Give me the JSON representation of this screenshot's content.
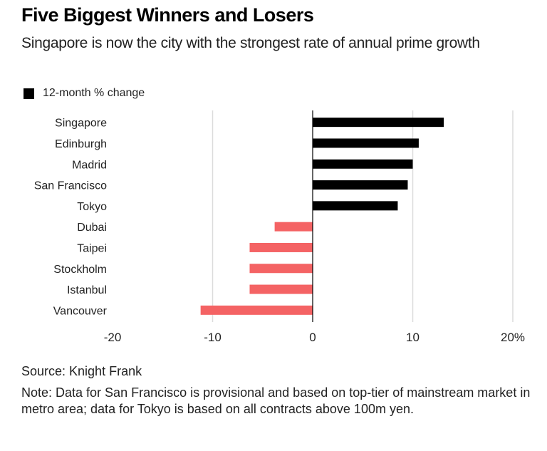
{
  "chart_data": {
    "type": "bar",
    "orientation": "horizontal",
    "title": "Five Biggest Winners and Losers",
    "subtitle": "Singapore is now the city with the strongest rate of annual prime growth",
    "legend": {
      "label": "12-month % change",
      "placement": "top-left",
      "color": "#000000"
    },
    "categories": [
      "Singapore",
      "Edinburgh",
      "Madrid",
      "San Francisco",
      "Tokyo",
      "Dubai",
      "Taipei",
      "Stockholm",
      "Istanbul",
      "Vancouver"
    ],
    "values": [
      13.1,
      10.6,
      10.0,
      9.5,
      8.5,
      -3.8,
      -6.3,
      -6.3,
      -6.3,
      -11.2
    ],
    "positive_color": "#000000",
    "negative_color": "#f46364",
    "xlim": [
      -20,
      20
    ],
    "xticks": [
      -20,
      -10,
      0,
      10,
      20
    ],
    "xtick_labels": [
      "-20",
      "-10",
      "0",
      "10",
      "20%"
    ],
    "grid": true,
    "xlabel": "",
    "ylabel": ""
  },
  "source": "Source: Knight Frank",
  "note": "Note: Data for San Francisco is provisional and based on top-tier of mainstream market in metro area; data for Tokyo is based on all contracts above 100m yen."
}
